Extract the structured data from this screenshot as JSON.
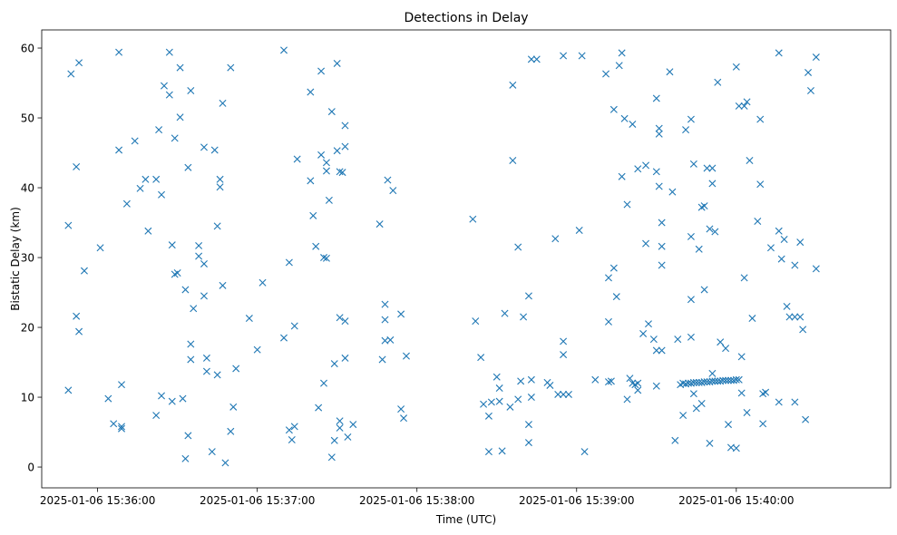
{
  "chart_data": {
    "type": "scatter",
    "title": "Detections in Delay",
    "xlabel": "Time (UTC)",
    "ylabel": "Bistatic Delay (km)",
    "x_axis_type": "datetime",
    "xlim": [
      "2025-01-06 15:35:39",
      "2025-01-06 15:40:58"
    ],
    "ylim": [
      -2.98,
      62.6
    ],
    "x_ticks": [
      "2025-01-06 15:36:00",
      "2025-01-06 15:37:00",
      "2025-01-06 15:38:00",
      "2025-01-06 15:39:00",
      "2025-01-06 15:40:00"
    ],
    "y_ticks": [
      0,
      10,
      20,
      30,
      40,
      50,
      60
    ],
    "grid": false,
    "marker": "x",
    "marker_color": "#1f77b4",
    "points": [
      [
        "2025-01-06 15:35:49",
        34.6
      ],
      [
        "2025-01-06 15:35:49",
        11.0
      ],
      [
        "2025-01-06 15:35:50",
        56.3
      ],
      [
        "2025-01-06 15:35:52",
        43.0
      ],
      [
        "2025-01-06 15:35:52",
        21.6
      ],
      [
        "2025-01-06 15:35:53",
        19.4
      ],
      [
        "2025-01-06 15:35:53",
        57.9
      ],
      [
        "2025-01-06 15:35:55",
        28.1
      ],
      [
        "2025-01-06 15:36:01",
        31.4
      ],
      [
        "2025-01-06 15:36:04",
        9.8
      ],
      [
        "2025-01-06 15:36:06",
        6.2
      ],
      [
        "2025-01-06 15:36:08",
        59.4
      ],
      [
        "2025-01-06 15:36:08",
        45.4
      ],
      [
        "2025-01-06 15:36:09",
        11.8
      ],
      [
        "2025-01-06 15:36:09",
        5.8
      ],
      [
        "2025-01-06 15:36:09",
        5.5
      ],
      [
        "2025-01-06 15:36:11",
        37.7
      ],
      [
        "2025-01-06 15:36:14",
        46.7
      ],
      [
        "2025-01-06 15:36:16",
        39.9
      ],
      [
        "2025-01-06 15:36:18",
        41.2
      ],
      [
        "2025-01-06 15:36:19",
        33.8
      ],
      [
        "2025-01-06 15:36:22",
        41.2
      ],
      [
        "2025-01-06 15:36:22",
        7.4
      ],
      [
        "2025-01-06 15:36:23",
        48.3
      ],
      [
        "2025-01-06 15:36:24",
        10.2
      ],
      [
        "2025-01-06 15:36:24",
        39.0
      ],
      [
        "2025-01-06 15:36:25",
        54.6
      ],
      [
        "2025-01-06 15:36:27",
        53.3
      ],
      [
        "2025-01-06 15:36:27",
        59.4
      ],
      [
        "2025-01-06 15:36:28",
        31.8
      ],
      [
        "2025-01-06 15:36:28",
        9.4
      ],
      [
        "2025-01-06 15:36:29",
        47.1
      ],
      [
        "2025-01-06 15:36:29",
        27.6
      ],
      [
        "2025-01-06 15:36:30",
        27.8
      ],
      [
        "2025-01-06 15:36:31",
        50.1
      ],
      [
        "2025-01-06 15:36:31",
        57.2
      ],
      [
        "2025-01-06 15:36:32",
        9.8
      ],
      [
        "2025-01-06 15:36:33",
        25.4
      ],
      [
        "2025-01-06 15:36:33",
        1.2
      ],
      [
        "2025-01-06 15:36:34",
        42.9
      ],
      [
        "2025-01-06 15:36:34",
        4.5
      ],
      [
        "2025-01-06 15:36:35",
        17.6
      ],
      [
        "2025-01-06 15:36:35",
        15.4
      ],
      [
        "2025-01-06 15:36:35",
        53.9
      ],
      [
        "2025-01-06 15:36:36",
        22.7
      ],
      [
        "2025-01-06 15:36:38",
        31.7
      ],
      [
        "2025-01-06 15:36:38",
        30.2
      ],
      [
        "2025-01-06 15:36:40",
        29.1
      ],
      [
        "2025-01-06 15:36:40",
        45.8
      ],
      [
        "2025-01-06 15:36:40",
        24.5
      ],
      [
        "2025-01-06 15:36:41",
        15.6
      ],
      [
        "2025-01-06 15:36:41",
        13.7
      ],
      [
        "2025-01-06 15:36:43",
        2.2
      ],
      [
        "2025-01-06 15:36:44",
        45.4
      ],
      [
        "2025-01-06 15:36:45",
        34.5
      ],
      [
        "2025-01-06 15:36:45",
        13.2
      ],
      [
        "2025-01-06 15:36:46",
        40.1
      ],
      [
        "2025-01-06 15:36:46",
        41.2
      ],
      [
        "2025-01-06 15:36:47",
        26.0
      ],
      [
        "2025-01-06 15:36:47",
        52.1
      ],
      [
        "2025-01-06 15:36:48",
        0.6
      ],
      [
        "2025-01-06 15:36:50",
        57.2
      ],
      [
        "2025-01-06 15:36:50",
        5.1
      ],
      [
        "2025-01-06 15:36:51",
        8.6
      ],
      [
        "2025-01-06 15:36:52",
        14.1
      ],
      [
        "2025-01-06 15:36:57",
        21.3
      ],
      [
        "2025-01-06 15:37:00",
        16.8
      ],
      [
        "2025-01-06 15:37:02",
        26.4
      ],
      [
        "2025-01-06 15:37:10",
        59.7
      ],
      [
        "2025-01-06 15:37:10",
        18.5
      ],
      [
        "2025-01-06 15:37:12",
        29.3
      ],
      [
        "2025-01-06 15:37:12",
        5.3
      ],
      [
        "2025-01-06 15:37:13",
        3.9
      ],
      [
        "2025-01-06 15:37:14",
        5.8
      ],
      [
        "2025-01-06 15:37:14",
        20.2
      ],
      [
        "2025-01-06 15:37:15",
        44.1
      ],
      [
        "2025-01-06 15:37:20",
        53.7
      ],
      [
        "2025-01-06 15:37:20",
        41.0
      ],
      [
        "2025-01-06 15:37:21",
        36.0
      ],
      [
        "2025-01-06 15:37:22",
        31.6
      ],
      [
        "2025-01-06 15:37:23",
        8.5
      ],
      [
        "2025-01-06 15:37:24",
        56.7
      ],
      [
        "2025-01-06 15:37:24",
        44.7
      ],
      [
        "2025-01-06 15:37:25",
        12.0
      ],
      [
        "2025-01-06 15:37:25",
        30.0
      ],
      [
        "2025-01-06 15:37:26",
        43.6
      ],
      [
        "2025-01-06 15:37:26",
        42.4
      ],
      [
        "2025-01-06 15:37:26",
        29.9
      ],
      [
        "2025-01-06 15:37:27",
        38.2
      ],
      [
        "2025-01-06 15:37:28",
        50.9
      ],
      [
        "2025-01-06 15:37:28",
        1.4
      ],
      [
        "2025-01-06 15:37:29",
        14.8
      ],
      [
        "2025-01-06 15:37:29",
        3.8
      ],
      [
        "2025-01-06 15:37:30",
        57.8
      ],
      [
        "2025-01-06 15:37:30",
        45.3
      ],
      [
        "2025-01-06 15:37:31",
        42.3
      ],
      [
        "2025-01-06 15:37:31",
        21.4
      ],
      [
        "2025-01-06 15:37:31",
        5.6
      ],
      [
        "2025-01-06 15:37:31",
        6.6
      ],
      [
        "2025-01-06 15:37:32",
        42.2
      ],
      [
        "2025-01-06 15:37:33",
        48.9
      ],
      [
        "2025-01-06 15:37:33",
        45.9
      ],
      [
        "2025-01-06 15:37:33",
        20.9
      ],
      [
        "2025-01-06 15:37:33",
        15.6
      ],
      [
        "2025-01-06 15:37:34",
        4.3
      ],
      [
        "2025-01-06 15:37:36",
        6.1
      ],
      [
        "2025-01-06 15:37:46",
        34.8
      ],
      [
        "2025-01-06 15:37:47",
        15.4
      ],
      [
        "2025-01-06 15:37:48",
        18.1
      ],
      [
        "2025-01-06 15:37:48",
        23.3
      ],
      [
        "2025-01-06 15:37:48",
        21.1
      ],
      [
        "2025-01-06 15:37:49",
        41.1
      ],
      [
        "2025-01-06 15:37:50",
        18.2
      ],
      [
        "2025-01-06 15:37:51",
        39.6
      ],
      [
        "2025-01-06 15:37:54",
        21.9
      ],
      [
        "2025-01-06 15:37:54",
        8.3
      ],
      [
        "2025-01-06 15:37:55",
        7.0
      ],
      [
        "2025-01-06 15:37:56",
        15.9
      ],
      [
        "2025-01-06 15:38:21",
        35.5
      ],
      [
        "2025-01-06 15:38:22",
        20.9
      ],
      [
        "2025-01-06 15:38:24",
        15.7
      ],
      [
        "2025-01-06 15:38:25",
        9.0
      ],
      [
        "2025-01-06 15:38:27",
        7.3
      ],
      [
        "2025-01-06 15:38:27",
        2.2
      ],
      [
        "2025-01-06 15:38:28",
        9.3
      ],
      [
        "2025-01-06 15:38:30",
        12.9
      ],
      [
        "2025-01-06 15:38:31",
        11.3
      ],
      [
        "2025-01-06 15:38:31",
        9.4
      ],
      [
        "2025-01-06 15:38:32",
        2.3
      ],
      [
        "2025-01-06 15:38:33",
        22.0
      ],
      [
        "2025-01-06 15:38:35",
        8.6
      ],
      [
        "2025-01-06 15:38:36",
        54.7
      ],
      [
        "2025-01-06 15:38:36",
        43.9
      ],
      [
        "2025-01-06 15:38:38",
        31.5
      ],
      [
        "2025-01-06 15:38:38",
        9.7
      ],
      [
        "2025-01-06 15:38:39",
        12.3
      ],
      [
        "2025-01-06 15:38:40",
        21.5
      ],
      [
        "2025-01-06 15:38:42",
        24.5
      ],
      [
        "2025-01-06 15:38:42",
        6.1
      ],
      [
        "2025-01-06 15:38:42",
        3.5
      ],
      [
        "2025-01-06 15:38:43",
        58.4
      ],
      [
        "2025-01-06 15:38:43",
        10.0
      ],
      [
        "2025-01-06 15:38:43",
        12.5
      ],
      [
        "2025-01-06 15:38:45",
        58.4
      ],
      [
        "2025-01-06 15:38:49",
        12.1
      ],
      [
        "2025-01-06 15:38:50",
        11.7
      ],
      [
        "2025-01-06 15:38:52",
        32.7
      ],
      [
        "2025-01-06 15:38:53",
        10.4
      ],
      [
        "2025-01-06 15:38:55",
        18.0
      ],
      [
        "2025-01-06 15:38:55",
        16.1
      ],
      [
        "2025-01-06 15:38:55",
        10.4
      ],
      [
        "2025-01-06 15:38:55",
        58.9
      ],
      [
        "2025-01-06 15:38:57",
        10.4
      ],
      [
        "2025-01-06 15:39:01",
        33.9
      ],
      [
        "2025-01-06 15:39:02",
        58.9
      ],
      [
        "2025-01-06 15:39:03",
        2.2
      ],
      [
        "2025-01-06 15:39:07",
        12.5
      ],
      [
        "2025-01-06 15:39:11",
        56.3
      ],
      [
        "2025-01-06 15:39:12",
        27.1
      ],
      [
        "2025-01-06 15:39:12",
        20.8
      ],
      [
        "2025-01-06 15:39:12",
        12.2
      ],
      [
        "2025-01-06 15:39:13",
        12.3
      ],
      [
        "2025-01-06 15:39:14",
        51.2
      ],
      [
        "2025-01-06 15:39:14",
        28.5
      ],
      [
        "2025-01-06 15:39:15",
        24.4
      ],
      [
        "2025-01-06 15:39:16",
        57.5
      ],
      [
        "2025-01-06 15:39:17",
        41.6
      ],
      [
        "2025-01-06 15:39:17",
        59.3
      ],
      [
        "2025-01-06 15:39:18",
        49.9
      ],
      [
        "2025-01-06 15:39:19",
        37.6
      ],
      [
        "2025-01-06 15:39:19",
        9.7
      ],
      [
        "2025-01-06 15:39:20",
        12.7
      ],
      [
        "2025-01-06 15:39:21",
        12.0
      ],
      [
        "2025-01-06 15:39:21",
        49.1
      ],
      [
        "2025-01-06 15:39:22",
        11.8
      ],
      [
        "2025-01-06 15:39:23",
        12.0
      ],
      [
        "2025-01-06 15:39:23",
        42.7
      ],
      [
        "2025-01-06 15:39:23",
        11.0
      ],
      [
        "2025-01-06 15:39:25",
        19.1
      ],
      [
        "2025-01-06 15:39:26",
        43.2
      ],
      [
        "2025-01-06 15:39:26",
        32.0
      ],
      [
        "2025-01-06 15:39:27",
        20.5
      ],
      [
        "2025-01-06 15:39:29",
        18.3
      ],
      [
        "2025-01-06 15:39:30",
        42.3
      ],
      [
        "2025-01-06 15:39:30",
        16.7
      ],
      [
        "2025-01-06 15:39:30",
        11.6
      ],
      [
        "2025-01-06 15:39:30",
        52.8
      ],
      [
        "2025-01-06 15:39:31",
        47.7
      ],
      [
        "2025-01-06 15:39:31",
        48.5
      ],
      [
        "2025-01-06 15:39:31",
        40.2
      ],
      [
        "2025-01-06 15:39:32",
        35.0
      ],
      [
        "2025-01-06 15:39:32",
        31.6
      ],
      [
        "2025-01-06 15:39:32",
        28.9
      ],
      [
        "2025-01-06 15:39:32",
        16.7
      ],
      [
        "2025-01-06 15:39:35",
        56.6
      ],
      [
        "2025-01-06 15:39:36",
        39.4
      ],
      [
        "2025-01-06 15:39:37",
        3.8
      ],
      [
        "2025-01-06 15:39:38",
        18.3
      ],
      [
        "2025-01-06 15:39:39",
        11.8
      ],
      [
        "2025-01-06 15:39:40",
        7.4
      ],
      [
        "2025-01-06 15:39:40",
        12.0
      ],
      [
        "2025-01-06 15:39:41",
        11.9
      ],
      [
        "2025-01-06 15:39:41",
        48.3
      ],
      [
        "2025-01-06 15:39:42",
        12.0
      ],
      [
        "2025-01-06 15:39:43",
        49.8
      ],
      [
        "2025-01-06 15:39:43",
        33.0
      ],
      [
        "2025-01-06 15:39:43",
        24.0
      ],
      [
        "2025-01-06 15:39:43",
        18.6
      ],
      [
        "2025-01-06 15:39:43",
        12.0
      ],
      [
        "2025-01-06 15:39:44",
        43.4
      ],
      [
        "2025-01-06 15:39:44",
        10.5
      ],
      [
        "2025-01-06 15:39:44",
        12.1
      ],
      [
        "2025-01-06 15:39:45",
        12.1
      ],
      [
        "2025-01-06 15:39:45",
        8.4
      ],
      [
        "2025-01-06 15:39:46",
        12.1
      ],
      [
        "2025-01-06 15:39:46",
        31.2
      ],
      [
        "2025-01-06 15:39:47",
        37.2
      ],
      [
        "2025-01-06 15:39:47",
        12.1
      ],
      [
        "2025-01-06 15:39:47",
        9.1
      ],
      [
        "2025-01-06 15:39:48",
        25.4
      ],
      [
        "2025-01-06 15:39:48",
        12.2
      ],
      [
        "2025-01-06 15:39:48",
        37.4
      ],
      [
        "2025-01-06 15:39:49",
        42.8
      ],
      [
        "2025-01-06 15:39:49",
        12.2
      ],
      [
        "2025-01-06 15:39:50",
        34.1
      ],
      [
        "2025-01-06 15:39:50",
        12.2
      ],
      [
        "2025-01-06 15:39:50",
        3.4
      ],
      [
        "2025-01-06 15:39:51",
        42.8
      ],
      [
        "2025-01-06 15:39:51",
        40.6
      ],
      [
        "2025-01-06 15:39:51",
        13.4
      ],
      [
        "2025-01-06 15:39:51",
        12.3
      ],
      [
        "2025-01-06 15:39:52",
        33.7
      ],
      [
        "2025-01-06 15:39:52",
        12.3
      ],
      [
        "2025-01-06 15:39:53",
        12.3
      ],
      [
        "2025-01-06 15:39:53",
        55.1
      ],
      [
        "2025-01-06 15:39:54",
        17.9
      ],
      [
        "2025-01-06 15:39:54",
        12.3
      ],
      [
        "2025-01-06 15:39:55",
        12.4
      ],
      [
        "2025-01-06 15:39:56",
        12.4
      ],
      [
        "2025-01-06 15:39:56",
        17.0
      ],
      [
        "2025-01-06 15:39:57",
        12.4
      ],
      [
        "2025-01-06 15:39:57",
        6.1
      ],
      [
        "2025-01-06 15:39:58",
        12.4
      ],
      [
        "2025-01-06 15:39:58",
        2.8
      ],
      [
        "2025-01-06 15:39:59",
        12.4
      ],
      [
        "2025-01-06 15:40:00",
        57.3
      ],
      [
        "2025-01-06 15:40:00",
        12.5
      ],
      [
        "2025-01-06 15:40:00",
        2.7
      ],
      [
        "2025-01-06 15:40:01",
        51.7
      ],
      [
        "2025-01-06 15:40:01",
        12.5
      ],
      [
        "2025-01-06 15:40:02",
        10.6
      ],
      [
        "2025-01-06 15:40:02",
        15.8
      ],
      [
        "2025-01-06 15:40:03",
        51.7
      ],
      [
        "2025-01-06 15:40:03",
        27.1
      ],
      [
        "2025-01-06 15:40:04",
        52.3
      ],
      [
        "2025-01-06 15:40:04",
        7.8
      ],
      [
        "2025-01-06 15:40:05",
        43.9
      ],
      [
        "2025-01-06 15:40:06",
        21.3
      ],
      [
        "2025-01-06 15:40:08",
        35.2
      ],
      [
        "2025-01-06 15:40:09",
        49.8
      ],
      [
        "2025-01-06 15:40:09",
        40.5
      ],
      [
        "2025-01-06 15:40:10",
        6.2
      ],
      [
        "2025-01-06 15:40:10",
        10.5
      ],
      [
        "2025-01-06 15:40:11",
        10.7
      ],
      [
        "2025-01-06 15:40:13",
        31.4
      ],
      [
        "2025-01-06 15:40:16",
        9.3
      ],
      [
        "2025-01-06 15:40:16",
        33.8
      ],
      [
        "2025-01-06 15:40:16",
        59.3
      ],
      [
        "2025-01-06 15:40:17",
        29.8
      ],
      [
        "2025-01-06 15:40:18",
        32.6
      ],
      [
        "2025-01-06 15:40:19",
        23.0
      ],
      [
        "2025-01-06 15:40:20",
        21.5
      ],
      [
        "2025-01-06 15:40:22",
        21.5
      ],
      [
        "2025-01-06 15:40:22",
        9.3
      ],
      [
        "2025-01-06 15:40:22",
        28.9
      ],
      [
        "2025-01-06 15:40:24",
        32.2
      ],
      [
        "2025-01-06 15:40:24",
        21.5
      ],
      [
        "2025-01-06 15:40:25",
        19.7
      ],
      [
        "2025-01-06 15:40:26",
        6.8
      ],
      [
        "2025-01-06 15:40:27",
        56.5
      ],
      [
        "2025-01-06 15:40:28",
        53.9
      ],
      [
        "2025-01-06 15:40:30",
        28.4
      ],
      [
        "2025-01-06 15:40:30",
        58.7
      ]
    ]
  }
}
